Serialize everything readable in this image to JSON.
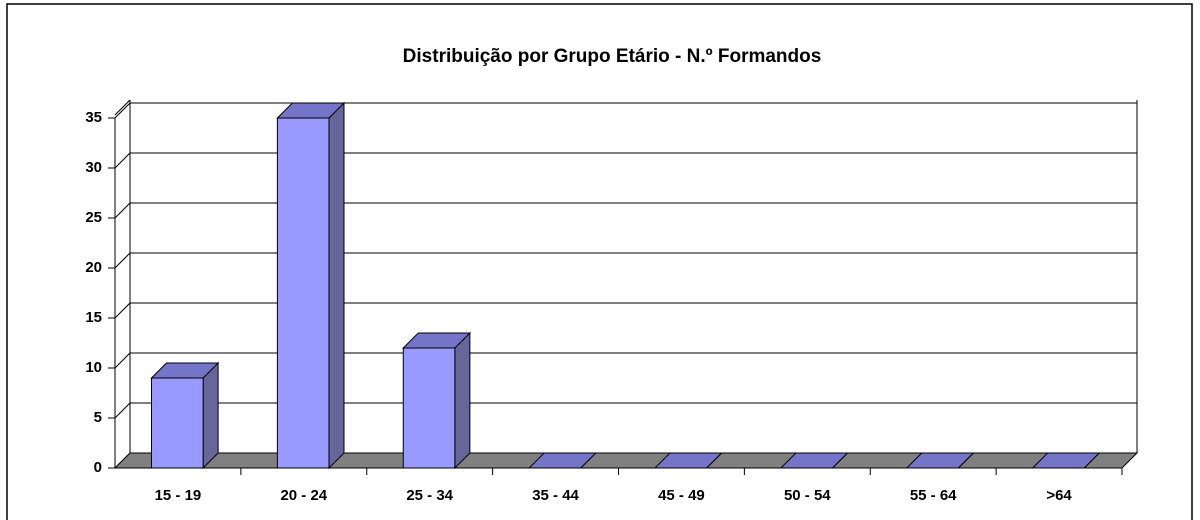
{
  "chart_data": {
    "type": "bar",
    "title": "Distribuição por Grupo Etário - N.º Formandos",
    "categories": [
      "15 - 19",
      "20 - 24",
      "25 - 34",
      "35 - 44",
      "45 - 49",
      "50 - 54",
      "55 - 64",
      ">64"
    ],
    "values": [
      9,
      35,
      12,
      0,
      0,
      0,
      0,
      0
    ],
    "color": "#9999ff",
    "ylim": [
      0,
      35
    ],
    "yticks": [
      0,
      5,
      10,
      15,
      20,
      25,
      30,
      35
    ],
    "grid": true
  }
}
